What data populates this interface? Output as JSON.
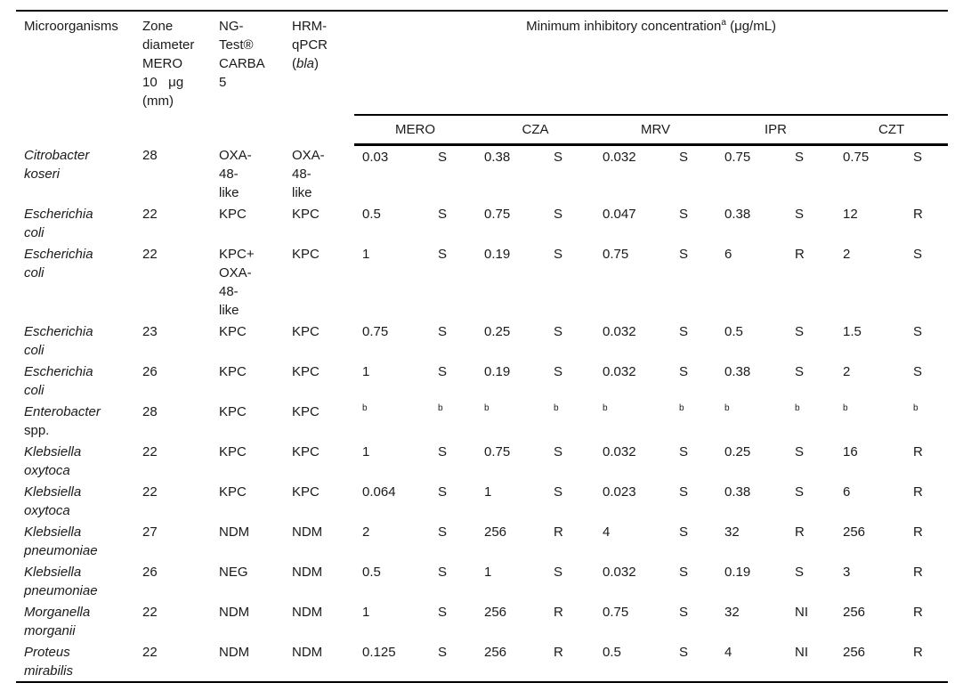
{
  "table": {
    "header": {
      "microorganisms": "Microorganisms",
      "zone": "Zone\ndiameter\nMERO\n10   μg\n(mm)",
      "ngtest": "NG-\nTest®\nCARBA\n5",
      "hrm_prefix": "HRM-\nqPCR\n(",
      "hrm_gene": "bla",
      "hrm_suffix": ")",
      "mic_title": "Minimum inhibitory concentration",
      "mic_superscript": "a",
      "mic_unit": " (μg/mL)",
      "antibiotics": [
        "MERO",
        "CZA",
        "MRV",
        "IPR",
        "CZT"
      ]
    },
    "footnote_marker": "b",
    "rows": [
      {
        "name": "Citrobacter\nkoseri",
        "name_plain": "",
        "zone": "28",
        "ngtest": "OXA-\n48-\nlike",
        "hrm": "OXA-\n48-\nlike",
        "mic": [
          "0.03",
          "S",
          "0.38",
          "S",
          "0.032",
          "S",
          "0.75",
          "S",
          "0.75",
          "S"
        ]
      },
      {
        "name": "Escherichia\ncoli",
        "name_plain": "",
        "zone": "22",
        "ngtest": "KPC",
        "hrm": "KPC",
        "mic": [
          "0.5",
          "S",
          "0.75",
          "S",
          "0.047",
          "S",
          "0.38",
          "S",
          "12",
          "R"
        ]
      },
      {
        "name": "Escherichia\ncoli",
        "name_plain": "",
        "zone": "22",
        "ngtest": "KPC+\nOXA-\n48-\nlike",
        "hrm": "KPC",
        "mic": [
          "1",
          "S",
          "0.19",
          "S",
          "0.75",
          "S",
          "6",
          "R",
          "2",
          "S"
        ]
      },
      {
        "name": "Escherichia\ncoli",
        "name_plain": "",
        "zone": "23",
        "ngtest": "KPC",
        "hrm": "KPC",
        "mic": [
          "0.75",
          "S",
          "0.25",
          "S",
          "0.032",
          "S",
          "0.5",
          "S",
          "1.5",
          "S"
        ]
      },
      {
        "name": "Escherichia\ncoli",
        "name_plain": "",
        "zone": "26",
        "ngtest": "KPC",
        "hrm": "KPC",
        "mic": [
          "1",
          "S",
          "0.19",
          "S",
          "0.032",
          "S",
          "0.38",
          "S",
          "2",
          "S"
        ]
      },
      {
        "name": "Enterobacter",
        "name_plain": "spp.",
        "zone": "28",
        "ngtest": "KPC",
        "hrm": "KPC",
        "mic": [
          "b",
          "b",
          "b",
          "b",
          "b",
          "b",
          "b",
          "b",
          "b",
          "b"
        ]
      },
      {
        "name": "Klebsiella\noxytoca",
        "name_plain": "",
        "zone": "22",
        "ngtest": "KPC",
        "hrm": "KPC",
        "mic": [
          "1",
          "S",
          "0.75",
          "S",
          "0.032",
          "S",
          "0.25",
          "S",
          "16",
          "R"
        ]
      },
      {
        "name": "Klebsiella\noxytoca",
        "name_plain": "",
        "zone": "22",
        "ngtest": "KPC",
        "hrm": "KPC",
        "mic": [
          "0.064",
          "S",
          "1",
          "S",
          "0.023",
          "S",
          "0.38",
          "S",
          "6",
          "R"
        ]
      },
      {
        "name": "Klebsiella\npneumoniae",
        "name_plain": "",
        "zone": "27",
        "ngtest": "NDM",
        "hrm": "NDM",
        "mic": [
          "2",
          "S",
          "256",
          "R",
          "4",
          "S",
          "32",
          "R",
          "256",
          "R"
        ]
      },
      {
        "name": "Klebsiella\npneumoniae",
        "name_plain": "",
        "zone": "26",
        "ngtest": "NEG",
        "hrm": "NDM",
        "mic": [
          "0.5",
          "S",
          "1",
          "S",
          "0.032",
          "S",
          "0.19",
          "S",
          "3",
          "R"
        ]
      },
      {
        "name": "Morganella\nmorganii",
        "name_plain": "",
        "zone": "22",
        "ngtest": "NDM",
        "hrm": "NDM",
        "mic": [
          "1",
          "S",
          "256",
          "R",
          "0.75",
          "S",
          "32",
          "NI",
          "256",
          "R"
        ]
      },
      {
        "name": "Proteus\nmirabilis",
        "name_plain": "",
        "zone": "22",
        "ngtest": "NDM",
        "hrm": "NDM",
        "mic": [
          "0.125",
          "S",
          "256",
          "R",
          "0.5",
          "S",
          "4",
          "NI",
          "256",
          "R"
        ]
      }
    ]
  }
}
